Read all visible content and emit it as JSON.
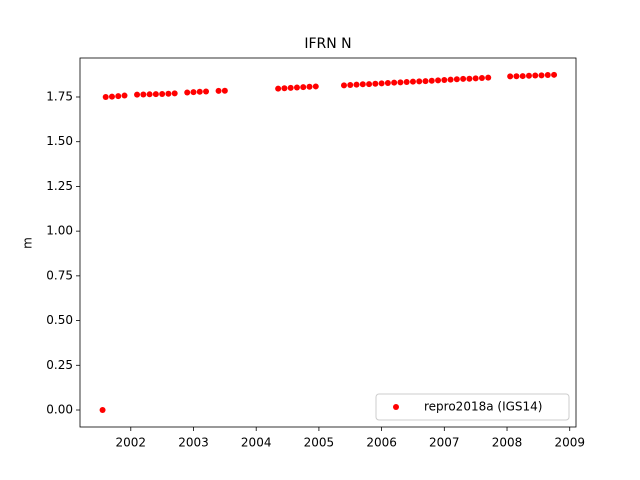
{
  "chart_data": {
    "type": "scatter",
    "title": "IFRN N",
    "ylabel": "m",
    "x": [
      2001.55,
      2001.6,
      2001.7,
      2001.8,
      2001.9,
      2002.1,
      2002.2,
      2002.3,
      2002.4,
      2002.5,
      2002.6,
      2002.7,
      2002.9,
      2003.0,
      2003.1,
      2003.2,
      2003.4,
      2003.5,
      2004.35,
      2004.45,
      2004.55,
      2004.65,
      2004.75,
      2004.85,
      2004.95,
      2005.4,
      2005.5,
      2005.6,
      2005.7,
      2005.8,
      2005.9,
      2006.0,
      2006.1,
      2006.2,
      2006.3,
      2006.4,
      2006.5,
      2006.6,
      2006.7,
      2006.8,
      2006.9,
      2007.0,
      2007.1,
      2007.2,
      2007.3,
      2007.4,
      2007.5,
      2007.6,
      2007.7,
      2008.05,
      2008.15,
      2008.25,
      2008.35,
      2008.45,
      2008.55,
      2008.65,
      2008.75
    ],
    "series": [
      {
        "name": "repro2018a (IGS14)",
        "color": "#ff0000",
        "values": [
          0.0,
          1.75,
          1.752,
          1.755,
          1.758,
          1.763,
          1.764,
          1.765,
          1.766,
          1.767,
          1.768,
          1.77,
          1.775,
          1.777,
          1.779,
          1.781,
          1.784,
          1.785,
          1.797,
          1.799,
          1.801,
          1.803,
          1.805,
          1.807,
          1.809,
          1.815,
          1.817,
          1.819,
          1.821,
          1.822,
          1.824,
          1.826,
          1.828,
          1.83,
          1.832,
          1.834,
          1.836,
          1.837,
          1.839,
          1.841,
          1.843,
          1.845,
          1.847,
          1.849,
          1.851,
          1.852,
          1.854,
          1.856,
          1.858,
          1.865,
          1.866,
          1.867,
          1.869,
          1.87,
          1.871,
          1.873,
          1.874
        ]
      }
    ],
    "xlim": [
      2001.19,
      2009.1
    ],
    "xticks": [
      2002,
      2003,
      2004,
      2005,
      2006,
      2007,
      2008,
      2009
    ],
    "ylim": [
      -0.095,
      1.968
    ],
    "yticks": [
      {
        "value": 0,
        "label": "0.00"
      },
      {
        "value": 0.25,
        "label": "0.25"
      },
      {
        "value": 0.5,
        "label": "0.50"
      },
      {
        "value": 0.75,
        "label": "0.75"
      },
      {
        "value": 1,
        "label": "1.00"
      },
      {
        "value": 1.25,
        "label": "1.25"
      },
      {
        "value": 1.5,
        "label": "1.50"
      },
      {
        "value": 1.75,
        "label": "1.75"
      }
    ],
    "legend": "lower right",
    "grid": false
  }
}
